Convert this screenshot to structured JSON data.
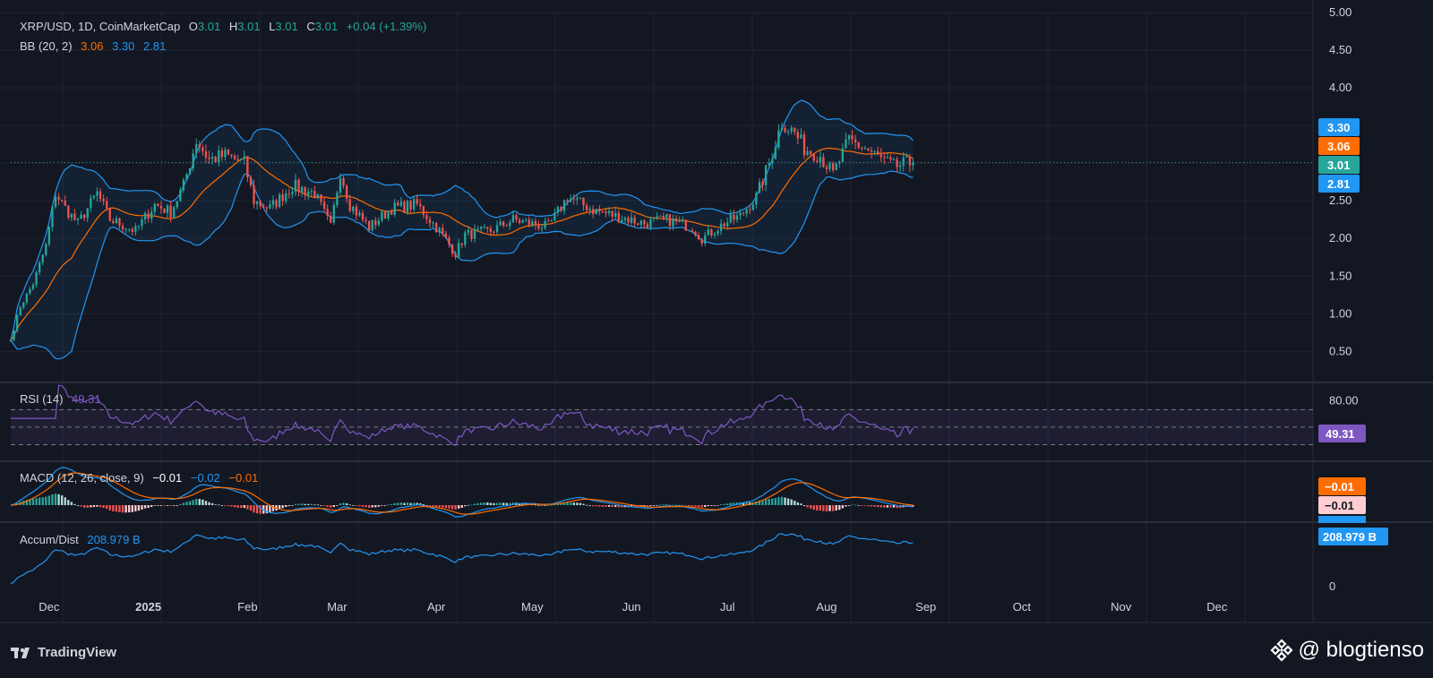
{
  "colors": {
    "background": "#131722",
    "grid": "#1f2433",
    "text": "#d1d4dc",
    "up": "#26a69a",
    "down": "#ef5350",
    "bb_band": "#2962ff",
    "bb_basis": "#ff6d00",
    "rsi": "#7e57c2",
    "macd": "#2196f3",
    "signal": "#ff6d00",
    "accum": "#2196f3"
  },
  "legend": {
    "symbol": "XRP/USD, 1D, CoinMarketCap",
    "o_label": "O",
    "o_value": "3.01",
    "h_label": "H",
    "h_value": "3.01",
    "l_label": "L",
    "l_value": "3.01",
    "c_label": "C",
    "c_value": "3.01",
    "change": "+0.04 (+1.39%)",
    "bb_label": "BB (20, 2)",
    "bb_basis": "3.06",
    "bb_upper": "3.30",
    "bb_lower": "2.81",
    "rsi_label": "RSI (14)",
    "rsi_value": "49.31",
    "macd_label": "MACD (12, 26, close, 9)",
    "macd_hist": "−0.01",
    "macd_line": "−0.02",
    "macd_signal": "−0.01",
    "ad_label": "Accum/Dist",
    "ad_value": "208.979 B"
  },
  "price_badges": [
    {
      "text": "3.30",
      "value": 3.3,
      "color": "#2196f3"
    },
    {
      "text": "3.06",
      "value": 3.06,
      "color": "#ff6d00"
    },
    {
      "text": "3.01",
      "value": 3.01,
      "color": "#26a69a"
    },
    {
      "text": "2.81",
      "value": 2.81,
      "color": "#2196f3"
    }
  ],
  "rsi_badge": "49.31",
  "macd_badges": [
    "−0.01",
    "−0.01",
    "−0.02"
  ],
  "ad_badge": "208.979 B",
  "footer": {
    "brand": "TradingView",
    "watermark": "@ blogtienso"
  },
  "chart_data": {
    "type": "candlestick",
    "symbol": "XRP/USD",
    "interval": "1D",
    "source": "CoinMarketCap",
    "x_axis": {
      "labels": [
        "Dec",
        "2025",
        "Feb",
        "Mar",
        "Apr",
        "May",
        "Jun",
        "Jul",
        "Aug",
        "Sep",
        "Oct",
        "Nov",
        "Dec"
      ],
      "start": "2024-11-19",
      "end": "2025-12-31",
      "last_candle": "2025-08-28"
    },
    "price_axis": {
      "ticks": [
        "5.00",
        "4.50",
        "4.00",
        "2.50",
        "2.00",
        "1.50",
        "1.00",
        "0.50"
      ],
      "range": [
        0.1,
        5.0
      ]
    },
    "price_anchors": [
      {
        "date": "2024-11-19",
        "close": 0.65
      },
      {
        "date": "2024-11-22",
        "close": 1.1
      },
      {
        "date": "2024-11-26",
        "close": 1.4
      },
      {
        "date": "2024-11-30",
        "close": 1.9
      },
      {
        "date": "2024-12-03",
        "close": 2.6
      },
      {
        "date": "2024-12-06",
        "close": 2.4
      },
      {
        "date": "2024-12-10",
        "close": 2.2
      },
      {
        "date": "2024-12-16",
        "close": 2.6
      },
      {
        "date": "2024-12-20",
        "close": 2.25
      },
      {
        "date": "2024-12-28",
        "close": 2.1
      },
      {
        "date": "2025-01-03",
        "close": 2.45
      },
      {
        "date": "2025-01-08",
        "close": 2.35
      },
      {
        "date": "2025-01-12",
        "close": 2.7
      },
      {
        "date": "2025-01-16",
        "close": 3.3
      },
      {
        "date": "2025-01-20",
        "close": 3.05
      },
      {
        "date": "2025-01-25",
        "close": 3.1
      },
      {
        "date": "2025-01-31",
        "close": 3.0
      },
      {
        "date": "2025-02-03",
        "close": 2.5
      },
      {
        "date": "2025-02-08",
        "close": 2.4
      },
      {
        "date": "2025-02-15",
        "close": 2.7
      },
      {
        "date": "2025-02-22",
        "close": 2.6
      },
      {
        "date": "2025-02-27",
        "close": 2.15
      },
      {
        "date": "2025-03-02",
        "close": 2.9
      },
      {
        "date": "2025-03-05",
        "close": 2.45
      },
      {
        "date": "2025-03-11",
        "close": 2.15
      },
      {
        "date": "2025-03-18",
        "close": 2.4
      },
      {
        "date": "2025-03-26",
        "close": 2.45
      },
      {
        "date": "2025-04-02",
        "close": 2.1
      },
      {
        "date": "2025-04-07",
        "close": 1.8
      },
      {
        "date": "2025-04-10",
        "close": 2.05
      },
      {
        "date": "2025-04-18",
        "close": 2.1
      },
      {
        "date": "2025-04-25",
        "close": 2.25
      },
      {
        "date": "2025-05-06",
        "close": 2.15
      },
      {
        "date": "2025-05-12",
        "close": 2.55
      },
      {
        "date": "2025-05-20",
        "close": 2.38
      },
      {
        "date": "2025-05-27",
        "close": 2.3
      },
      {
        "date": "2025-06-05",
        "close": 2.2
      },
      {
        "date": "2025-06-12",
        "close": 2.25
      },
      {
        "date": "2025-06-20",
        "close": 2.15
      },
      {
        "date": "2025-06-23",
        "close": 2.0
      },
      {
        "date": "2025-06-30",
        "close": 2.2
      },
      {
        "date": "2025-07-05",
        "close": 2.3
      },
      {
        "date": "2025-07-10",
        "close": 2.55
      },
      {
        "date": "2025-07-14",
        "close": 3.0
      },
      {
        "date": "2025-07-18",
        "close": 3.55
      },
      {
        "date": "2025-07-22",
        "close": 3.4
      },
      {
        "date": "2025-07-25",
        "close": 3.2
      },
      {
        "date": "2025-07-30",
        "close": 3.1
      },
      {
        "date": "2025-08-03",
        "close": 2.85
      },
      {
        "date": "2025-08-08",
        "close": 3.3
      },
      {
        "date": "2025-08-13",
        "close": 3.2
      },
      {
        "date": "2025-08-18",
        "close": 3.05
      },
      {
        "date": "2025-08-22",
        "close": 2.95
      },
      {
        "date": "2025-08-28",
        "close": 3.01
      }
    ],
    "last_values": {
      "close": 3.01,
      "bb_basis": 3.06,
      "bb_upper": 3.3,
      "bb_lower": 2.81,
      "rsi": 49.31,
      "macd": -0.02,
      "signal": -0.01,
      "histogram": -0.01,
      "accum_dist": "208.979 B"
    },
    "rsi_axis": {
      "ticks": [
        "80.00"
      ],
      "levels": [
        70,
        50,
        30
      ]
    },
    "ad_axis": {
      "ticks": [
        "0"
      ]
    }
  }
}
